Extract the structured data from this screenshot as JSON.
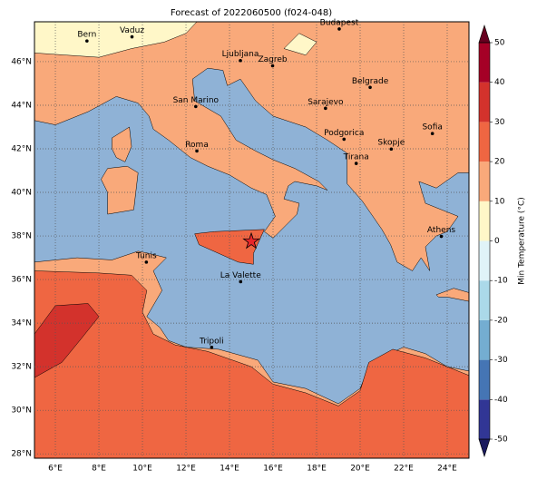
{
  "title": "Forecast of 2022060500 (f024-048)",
  "map": {
    "xlim": [
      5.04,
      25
    ],
    "ylim": [
      27.8,
      47.83
    ],
    "xticks": [
      {
        "value": 6,
        "label": "6°E"
      },
      {
        "value": 8,
        "label": "8°E"
      },
      {
        "value": 10,
        "label": "10°E"
      },
      {
        "value": 12,
        "label": "12°E"
      },
      {
        "value": 14,
        "label": "14°E"
      },
      {
        "value": 16,
        "label": "16°E"
      },
      {
        "value": 18,
        "label": "18°E"
      },
      {
        "value": 20,
        "label": "20°E"
      },
      {
        "value": 22,
        "label": "22°E"
      },
      {
        "value": 24,
        "label": "24°E"
      }
    ],
    "yticks": [
      {
        "value": 28,
        "label": "28°N"
      },
      {
        "value": 30,
        "label": "30°N"
      },
      {
        "value": 32,
        "label": "32°N"
      },
      {
        "value": 34,
        "label": "34°N"
      },
      {
        "value": 36,
        "label": "36°N"
      },
      {
        "value": 38,
        "label": "38°N"
      },
      {
        "value": 40,
        "label": "40°N"
      },
      {
        "value": 42,
        "label": "42°N"
      },
      {
        "value": 44,
        "label": "44°N"
      },
      {
        "value": 46,
        "label": "46°N"
      }
    ],
    "grid": true,
    "cities": [
      "Bern",
      "Vaduz",
      "Budapest",
      "Ljubljana",
      "Zagreb",
      "Belgrade",
      "San Marino",
      "Sarajevo",
      "Sofia",
      "Roma",
      "Podgorica",
      "Skopje",
      "Tirana",
      "Athens",
      "Tunis",
      "La Valette",
      "Tripoli"
    ]
  },
  "colorbar": {
    "label": "Min Temperature (°C)",
    "ticks": [
      -50,
      -40,
      -30,
      -20,
      -10,
      0,
      10,
      20,
      30,
      40,
      50
    ],
    "colors": [
      "#313695",
      "#4575b4",
      "#74add1",
      "#abd9e9",
      "#e0f3f8",
      "#fff7c8",
      "#f9a97a",
      "#ef6642",
      "#d3322c",
      "#a50026"
    ]
  }
}
